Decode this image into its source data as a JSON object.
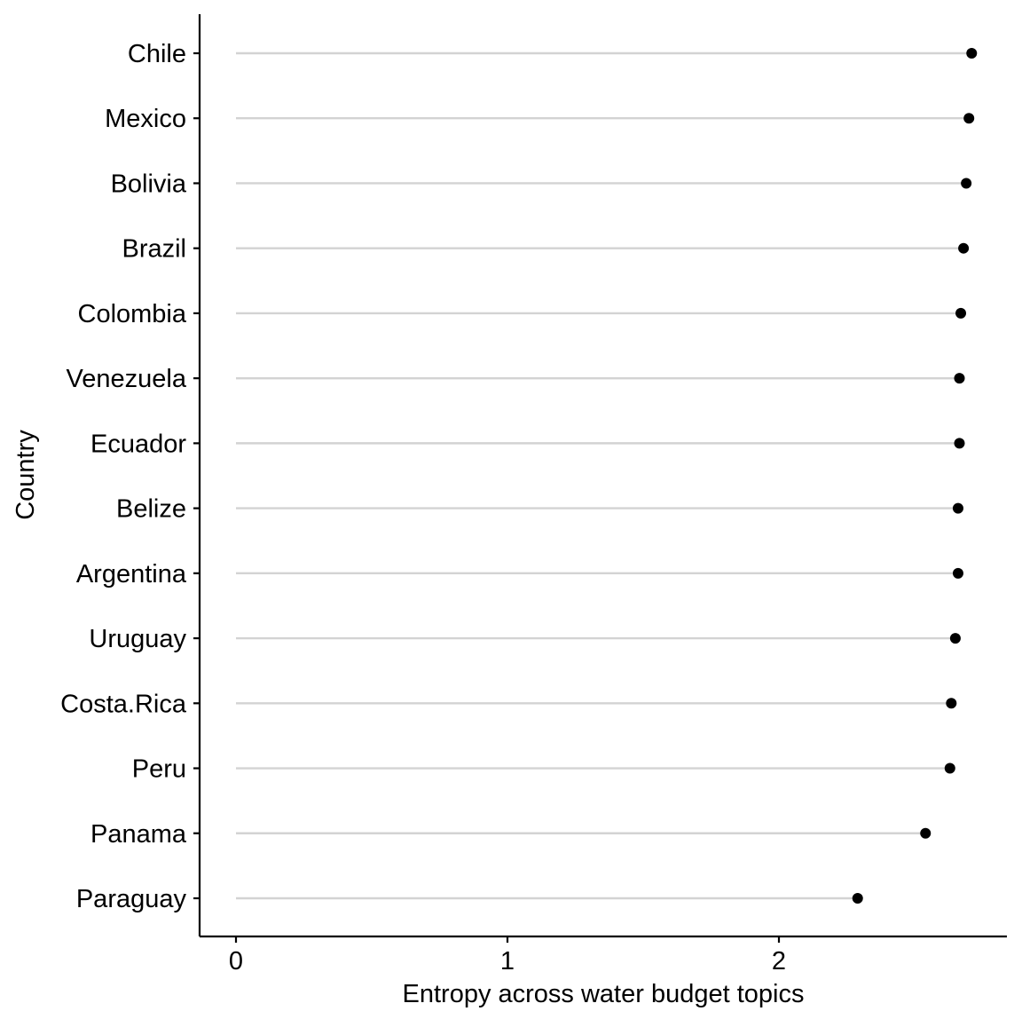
{
  "chart_data": {
    "type": "lollipop",
    "orientation": "horizontal",
    "xlabel": "Entropy across water budget topics",
    "ylabel": "Country",
    "xlim": [
      -0.13,
      2.85
    ],
    "xticks": [
      "0",
      "1",
      "2"
    ],
    "grid": false,
    "legend": "none",
    "categories": [
      "Chile",
      "Mexico",
      "Bolivia",
      "Brazil",
      "Colombia",
      "Venezuela",
      "Ecuador",
      "Belize",
      "Argentina",
      "Uruguay",
      "Costa.Rica",
      "Peru",
      "Panama",
      "Paraguay"
    ],
    "values": [
      2.71,
      2.7,
      2.69,
      2.68,
      2.67,
      2.665,
      2.665,
      2.66,
      2.66,
      2.65,
      2.635,
      2.63,
      2.54,
      2.29
    ],
    "colors": {
      "stem": "#d3d3d3",
      "point": "#000000",
      "axis": "#000000"
    }
  }
}
